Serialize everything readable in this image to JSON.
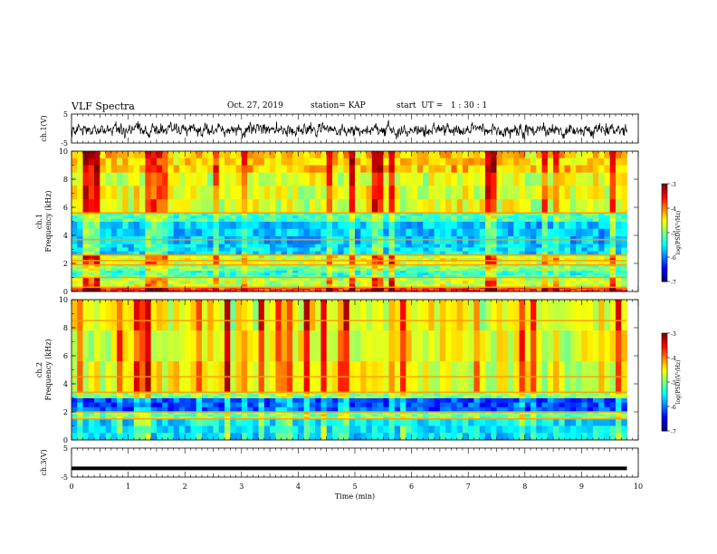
{
  "header": {
    "title": "VLF Spectra",
    "date": "Oct. 27, 2019",
    "station_label": "station= KAP",
    "start_label": "start  UT =   1 : 30 : 1"
  },
  "chart_data": [
    {
      "type": "line",
      "panel": "ch1-waveform",
      "ylabel": "ch.1(V)",
      "ylim": [
        -5,
        5
      ],
      "yticks": [
        "5",
        "-5"
      ],
      "xlim": [
        0,
        10
      ],
      "signal": {
        "mean": -0.5,
        "noise_amplitude": 2.0
      }
    },
    {
      "type": "heatmap",
      "panel": "ch1-spectrogram",
      "ylabel": "ch.1\nFrequency (kHz)",
      "ylim": [
        0,
        10
      ],
      "yticks": [
        "0",
        "2",
        "4",
        "6",
        "8",
        "10"
      ],
      "xlim": [
        0,
        10
      ],
      "colorbar": {
        "label": "log(PSD)(V²/Hz)",
        "range": [
          -7,
          -3
        ],
        "ticks": [
          "-3",
          "-4",
          "-5",
          "-6",
          "-7"
        ]
      },
      "bands": [
        {
          "from": 0,
          "to": 0.3,
          "level": -3.7
        },
        {
          "from": 0.3,
          "to": 1.0,
          "level": -4.7
        },
        {
          "from": 1.0,
          "to": 1.5,
          "level": -5.3
        },
        {
          "from": 1.5,
          "to": 1.9,
          "level": -5.0
        },
        {
          "from": 1.9,
          "to": 2.6,
          "level": -4.6
        },
        {
          "from": 2.6,
          "to": 3.4,
          "level": -5.6
        },
        {
          "from": 3.4,
          "to": 5.0,
          "level": -5.7
        },
        {
          "from": 5.0,
          "to": 5.6,
          "level": -5.2
        },
        {
          "from": 5.6,
          "to": 8.5,
          "level": -4.6
        },
        {
          "from": 8.5,
          "to": 10,
          "level": -4.3
        }
      ],
      "lines_khz": [
        0.3,
        1.0,
        1.9,
        2.2,
        2.6,
        3.7,
        5.6
      ]
    },
    {
      "type": "heatmap",
      "panel": "ch2-spectrogram",
      "ylabel": "ch.2\nFrequency (kHz)",
      "ylim": [
        0,
        10
      ],
      "yticks": [
        "0",
        "2",
        "4",
        "6",
        "8",
        "10"
      ],
      "xlim": [
        0,
        10
      ],
      "colorbar": {
        "label": "log(PSD)(V²/Hz)",
        "range": [
          -7,
          -3
        ],
        "ticks": [
          "-3",
          "-4",
          "-5",
          "-6",
          "-7"
        ]
      },
      "bands": [
        {
          "from": 0,
          "to": 1.5,
          "level": -5.6
        },
        {
          "from": 1.5,
          "to": 2.0,
          "level": -5.1
        },
        {
          "from": 2.0,
          "to": 3.0,
          "level": -6.2
        },
        {
          "from": 3.0,
          "to": 3.4,
          "level": -5.0
        },
        {
          "from": 3.4,
          "to": 10,
          "level": -4.6
        }
      ],
      "lines_khz": [
        1.5,
        2.0,
        3.4,
        4.5,
        8.5
      ]
    },
    {
      "type": "line",
      "panel": "ch3-waveform",
      "ylabel": "ch.3(V)",
      "ylim": [
        -5,
        5
      ],
      "yticks": [
        "5",
        "-5"
      ],
      "xlim": [
        0,
        10
      ],
      "xlabel": "Time  (min)",
      "xticks": [
        "0",
        "1",
        "2",
        "3",
        "4",
        "5",
        "6",
        "7",
        "8",
        "9",
        "10"
      ],
      "signal": {
        "mean": -2,
        "noise_amplitude": 0
      }
    }
  ]
}
